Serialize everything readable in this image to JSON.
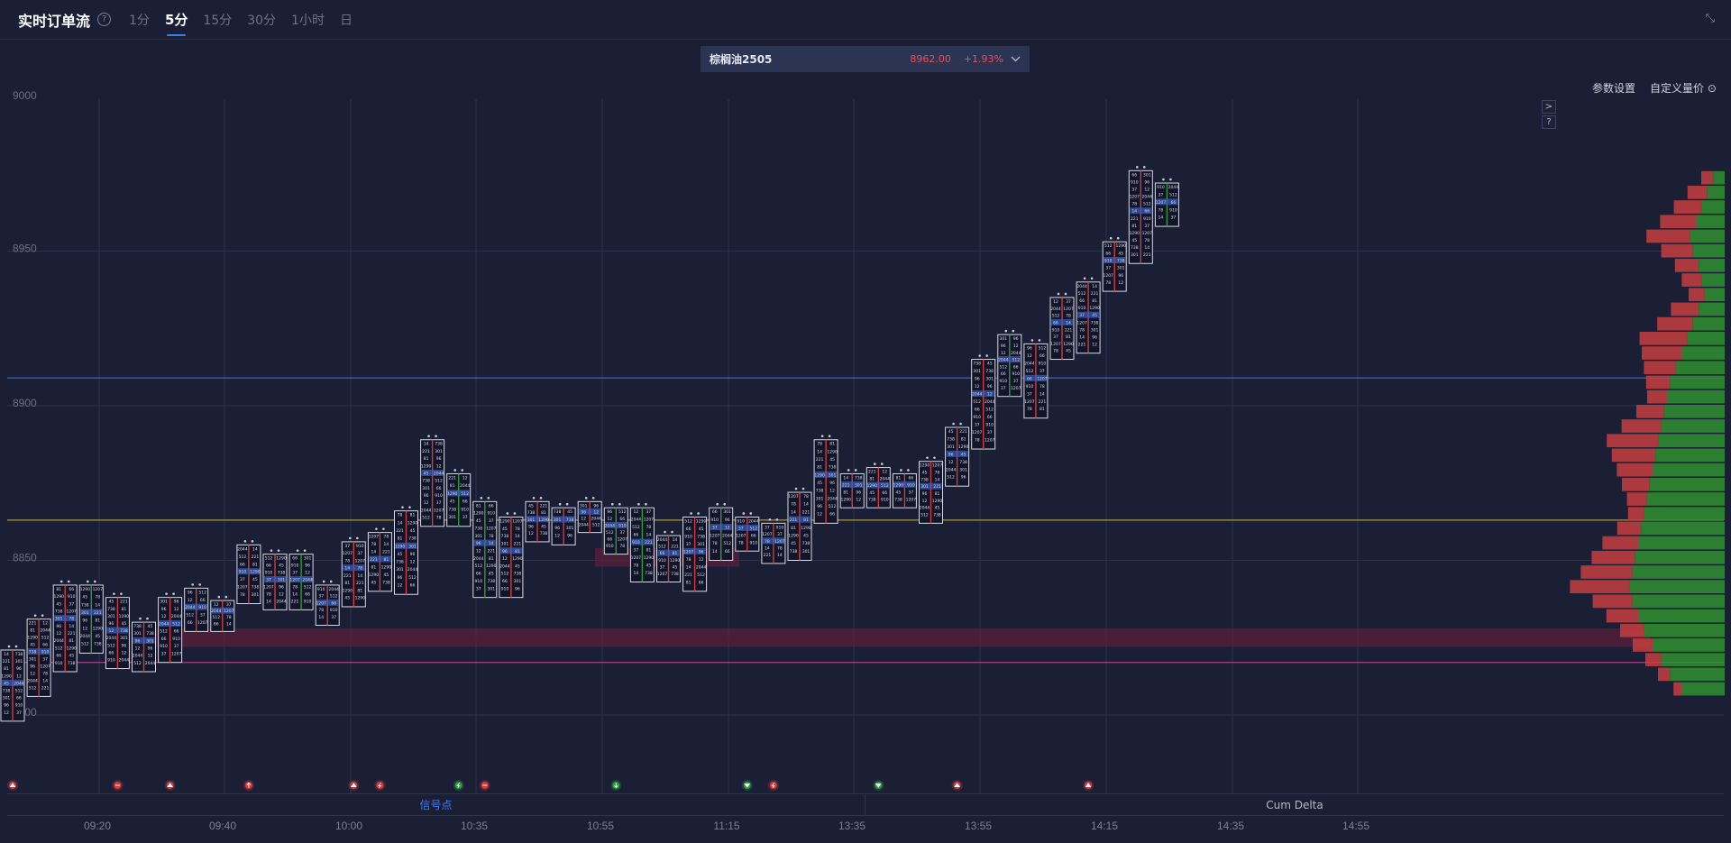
{
  "app": {
    "title": "实时订单流",
    "help_icon": "?",
    "timeframes": [
      "1分",
      "5分",
      "15分",
      "30分",
      "1小时",
      "日"
    ],
    "active_timeframe": "5分",
    "collapse_icon": "⤡"
  },
  "symbol": {
    "name": "棕榈油2505",
    "price": "8962.00",
    "change": "+1.93%",
    "dropdown_icon": "chevron-down-icon"
  },
  "toolbar": {
    "param_settings": "参数设置",
    "custom_quote": "自定义量价",
    "custom_icon": "⊙"
  },
  "side_buttons": {
    "expand": ">",
    "help": "?"
  },
  "bottom_tabs": {
    "signals": "信号点",
    "cum_delta": "Cum Delta"
  },
  "colors": {
    "background": "#1b1f36",
    "up": "#2f8f2f",
    "down": "#c53e3e",
    "accent": "#3d7cf0",
    "yellow_line": "#c9b54a",
    "blue_line": "#4a78d9",
    "pink_line": "#c24a9e"
  },
  "chart_data": {
    "type": "footprint",
    "y_axis": {
      "ticks": [
        "8950",
        "8900",
        "8850",
        "8800"
      ],
      "partial_top_tick": "9000",
      "min": 8785,
      "max": 9000
    },
    "time_labels": [
      "09:20",
      "09:40",
      "10:00",
      "10:35",
      "10:55",
      "11:15",
      "13:35",
      "13:55",
      "14:15",
      "14:35",
      "14:55"
    ],
    "horizontal_lines": [
      {
        "name": "yellow",
        "value": 8863
      },
      {
        "name": "blue",
        "value": 8909
      },
      {
        "name": "pink",
        "value": 8817
      }
    ],
    "zones": [
      {
        "from": 8822,
        "to": 8828
      },
      {
        "from": 8848,
        "to": 8854
      }
    ],
    "bars": [
      {
        "low": 8798,
        "high": 8821,
        "dir": "down"
      },
      {
        "low": 8806,
        "high": 8831,
        "dir": "down"
      },
      {
        "low": 8814,
        "high": 8842,
        "dir": "down"
      },
      {
        "low": 8820,
        "high": 8842,
        "dir": "up"
      },
      {
        "low": 8815,
        "high": 8838,
        "dir": "down"
      },
      {
        "low": 8814,
        "high": 8830,
        "dir": "down"
      },
      {
        "low": 8817,
        "high": 8838,
        "dir": "down"
      },
      {
        "low": 8827,
        "high": 8841,
        "dir": "down"
      },
      {
        "low": 8827,
        "high": 8837,
        "dir": "down"
      },
      {
        "low": 8836,
        "high": 8855,
        "dir": "down"
      },
      {
        "low": 8834,
        "high": 8852,
        "dir": "down"
      },
      {
        "low": 8834,
        "high": 8852,
        "dir": "up"
      },
      {
        "low": 8829,
        "high": 8842,
        "dir": "down"
      },
      {
        "low": 8835,
        "high": 8856,
        "dir": "down"
      },
      {
        "low": 8840,
        "high": 8859,
        "dir": "down"
      },
      {
        "low": 8839,
        "high": 8866,
        "dir": "down"
      },
      {
        "low": 8861,
        "high": 8889,
        "dir": "down"
      },
      {
        "low": 8861,
        "high": 8878,
        "dir": "up"
      },
      {
        "low": 8838,
        "high": 8869,
        "dir": "up"
      },
      {
        "low": 8838,
        "high": 8864,
        "dir": "down"
      },
      {
        "low": 8856,
        "high": 8869,
        "dir": "down"
      },
      {
        "low": 8855,
        "high": 8867,
        "dir": "down"
      },
      {
        "low": 8859,
        "high": 8869,
        "dir": "down"
      },
      {
        "low": 8852,
        "high": 8867,
        "dir": "up"
      },
      {
        "low": 8843,
        "high": 8867,
        "dir": "up"
      },
      {
        "low": 8843,
        "high": 8858,
        "dir": "down"
      },
      {
        "low": 8840,
        "high": 8864,
        "dir": "down"
      },
      {
        "low": 8850,
        "high": 8867,
        "dir": "up"
      },
      {
        "low": 8853,
        "high": 8864,
        "dir": "down"
      },
      {
        "low": 8849,
        "high": 8862,
        "dir": "down"
      },
      {
        "low": 8850,
        "high": 8872,
        "dir": "down"
      },
      {
        "low": 8862,
        "high": 8889,
        "dir": "down"
      },
      {
        "low": 8867,
        "high": 8878,
        "dir": "down"
      },
      {
        "low": 8867,
        "high": 8880,
        "dir": "down"
      },
      {
        "low": 8867,
        "high": 8878,
        "dir": "down"
      },
      {
        "low": 8862,
        "high": 8882,
        "dir": "down"
      },
      {
        "low": 8874,
        "high": 8893,
        "dir": "down"
      },
      {
        "low": 8886,
        "high": 8915,
        "dir": "down"
      },
      {
        "low": 8903,
        "high": 8923,
        "dir": "up"
      },
      {
        "low": 8896,
        "high": 8920,
        "dir": "down"
      },
      {
        "low": 8915,
        "high": 8935,
        "dir": "down"
      },
      {
        "low": 8917,
        "high": 8940,
        "dir": "down"
      },
      {
        "low": 8937,
        "high": 8953,
        "dir": "down"
      },
      {
        "low": 8946,
        "high": 8976,
        "dir": "down"
      },
      {
        "low": 8958,
        "high": 8972,
        "dir": "up"
      }
    ],
    "signals": [
      {
        "bar": 0,
        "type": "up",
        "color": "#d23b3b"
      },
      {
        "bar": 4,
        "type": "minus",
        "color": "#d23b3b"
      },
      {
        "bar": 6,
        "type": "up",
        "color": "#d23b3b"
      },
      {
        "bar": 9,
        "type": "arrow-up",
        "color": "#d23b3b"
      },
      {
        "bar": 13,
        "type": "up",
        "color": "#d23b3b"
      },
      {
        "bar": 14,
        "type": "bolt",
        "color": "#d23b3b"
      },
      {
        "bar": 17,
        "type": "bolt",
        "color": "#2e9a3e"
      },
      {
        "bar": 18,
        "type": "minus",
        "color": "#d23b3b"
      },
      {
        "bar": 23,
        "type": "arrow-down",
        "color": "#2e9a3e"
      },
      {
        "bar": 28,
        "type": "down",
        "color": "#2e9a3e"
      },
      {
        "bar": 29,
        "type": "bolt",
        "color": "#d23b3b"
      },
      {
        "bar": 33,
        "type": "down",
        "color": "#2e9a3e"
      },
      {
        "bar": 36,
        "type": "up",
        "color": "#d23b3b"
      },
      {
        "bar": 41,
        "type": "up",
        "color": "#d23b3b"
      }
    ],
    "volume_profile": {
      "sell": [
        6,
        10,
        14,
        18,
        22,
        16,
        12,
        10,
        8,
        14,
        18,
        24,
        20,
        16,
        12,
        10,
        14,
        20,
        26,
        22,
        18,
        14,
        10,
        8,
        12,
        18,
        22,
        26,
        30,
        20,
        16,
        12,
        10,
        8,
        6,
        4
      ],
      "buy": [
        8,
        12,
        16,
        20,
        24,
        22,
        18,
        16,
        14,
        18,
        22,
        26,
        30,
        34,
        38,
        40,
        42,
        44,
        46,
        48,
        50,
        52,
        54,
        56,
        58,
        60,
        62,
        64,
        66,
        64,
        60,
        56,
        50,
        44,
        38,
        30
      ]
    }
  }
}
